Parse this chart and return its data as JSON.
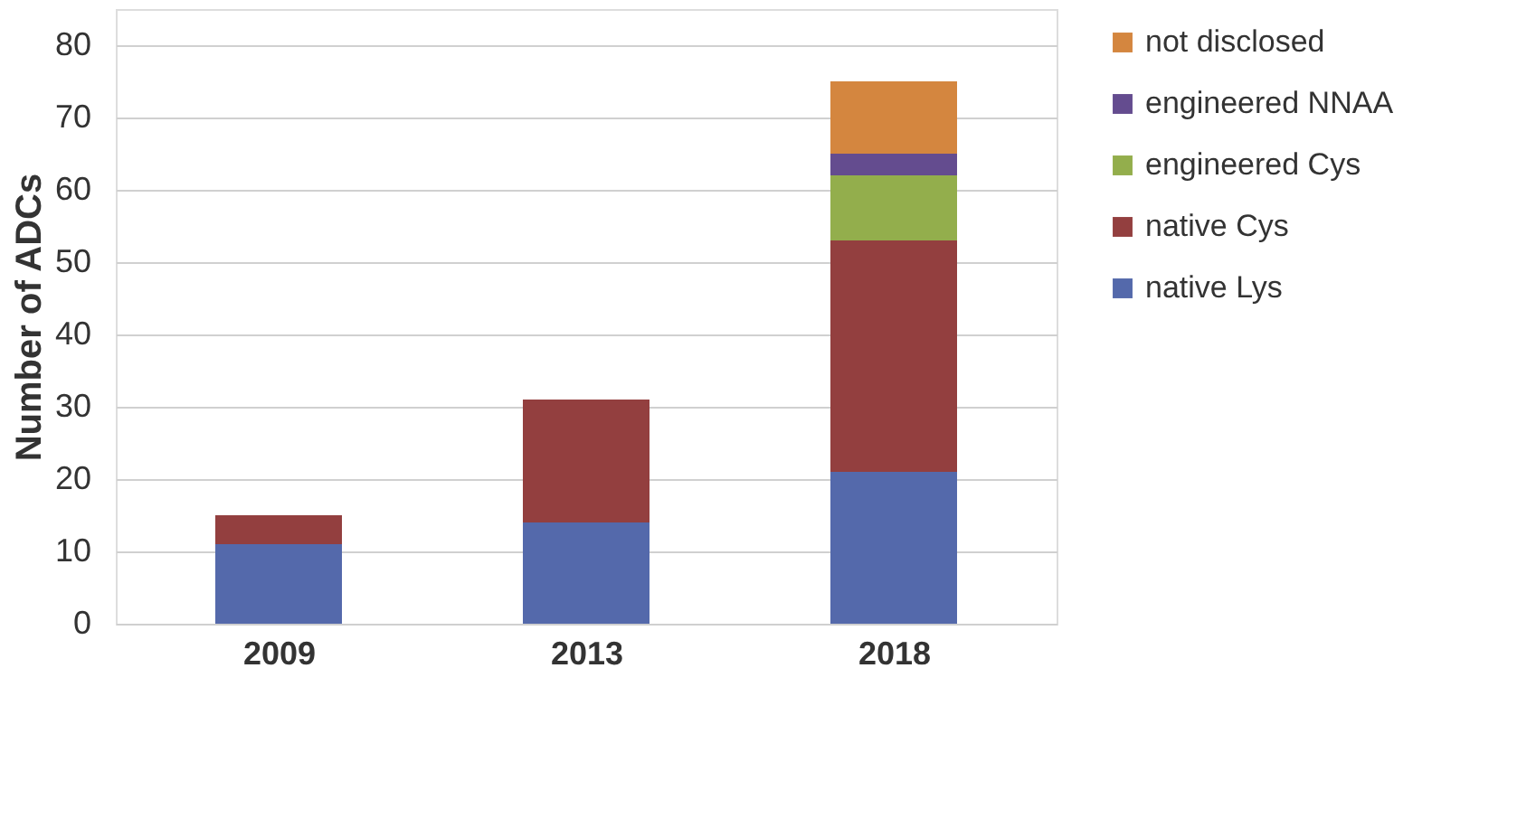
{
  "chart_data": {
    "type": "bar",
    "stacked": true,
    "ylabel": "Number of ADCs",
    "categories": [
      "2009",
      "2013",
      "2018"
    ],
    "series": [
      {
        "name": "native Lys",
        "color": "#5469ab",
        "values": [
          11,
          14,
          21
        ]
      },
      {
        "name": "native Cys",
        "color": "#933f3f",
        "values": [
          4,
          17,
          32
        ]
      },
      {
        "name": "engineered Cys",
        "color": "#93ae4c",
        "values": [
          0,
          0,
          9
        ]
      },
      {
        "name": "engineered NNAA",
        "color": "#644c8f",
        "values": [
          0,
          0,
          3
        ]
      },
      {
        "name": "not disclosed",
        "color": "#d4863f",
        "values": [
          0,
          0,
          10
        ]
      }
    ],
    "ylim": [
      0,
      85
    ],
    "yticks": [
      0,
      10,
      20,
      30,
      40,
      50,
      60,
      70,
      80
    ],
    "grid": "y",
    "legend": "right"
  }
}
